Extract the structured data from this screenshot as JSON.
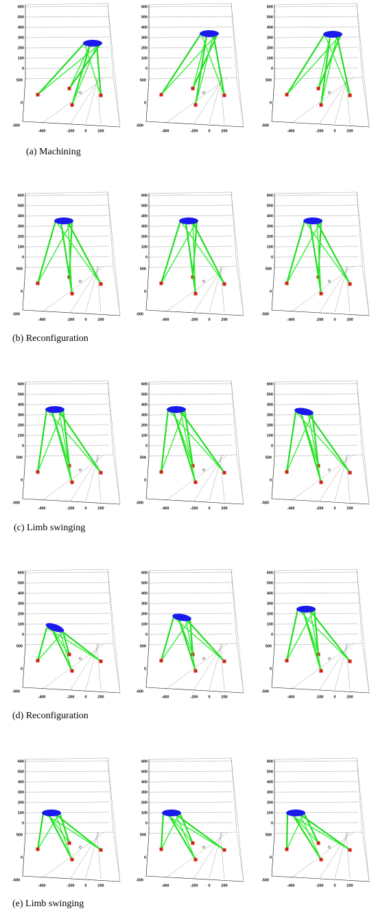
{
  "figure": {
    "axes": {
      "z_ticks": [
        600,
        500,
        400,
        300,
        200,
        100,
        0
      ],
      "y_ticks": [
        500,
        0,
        -500
      ],
      "x_ticks": [
        -400,
        -200,
        0,
        200
      ]
    },
    "rows": [
      {
        "caption": "(a) Machining"
      },
      {
        "caption": "(b) Reconfiguration"
      },
      {
        "caption": "(c) Limb swinging"
      },
      {
        "caption": "(d) Reconfiguration"
      },
      {
        "caption": "(e) Limb swinging"
      }
    ]
  }
}
